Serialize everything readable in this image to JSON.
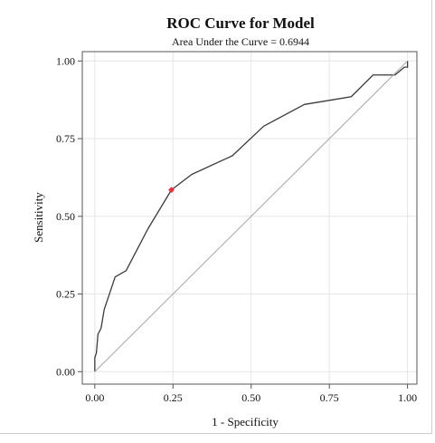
{
  "chart_data": {
    "type": "line",
    "title": "ROC Curve for Model",
    "subtitle": "Area Under the Curve = 0.6944",
    "xlabel": "1 - Specificity",
    "ylabel": "Sensitivity",
    "xlim": [
      -0.04,
      1.03
    ],
    "ylim": [
      -0.04,
      1.03
    ],
    "xticks": [
      "0.00",
      "0.25",
      "0.50",
      "0.75",
      "1.00"
    ],
    "yticks": [
      "0.00",
      "0.25",
      "0.50",
      "0.75",
      "1.00"
    ],
    "grid": true,
    "legend": "none",
    "series": [
      {
        "kind": "roc-curve",
        "color": "#3a3a3a",
        "x": [
          0.0,
          0.0,
          0.005,
          0.01,
          0.02,
          0.03,
          0.065,
          0.1,
          0.17,
          0.245,
          0.31,
          0.44,
          0.54,
          0.67,
          0.82,
          0.89,
          0.96,
          0.99,
          1.0,
          1.0
        ],
        "y": [
          0.0,
          0.045,
          0.06,
          0.12,
          0.14,
          0.2,
          0.305,
          0.325,
          0.46,
          0.585,
          0.635,
          0.695,
          0.79,
          0.86,
          0.885,
          0.955,
          0.955,
          0.98,
          0.98,
          1.0
        ]
      },
      {
        "kind": "reference-diagonal",
        "color": "#a6a6a6",
        "x": [
          0,
          1
        ],
        "y": [
          0,
          1
        ]
      }
    ],
    "highlight_point": {
      "x": 0.245,
      "y": 0.585,
      "color": "#e8323c"
    }
  }
}
